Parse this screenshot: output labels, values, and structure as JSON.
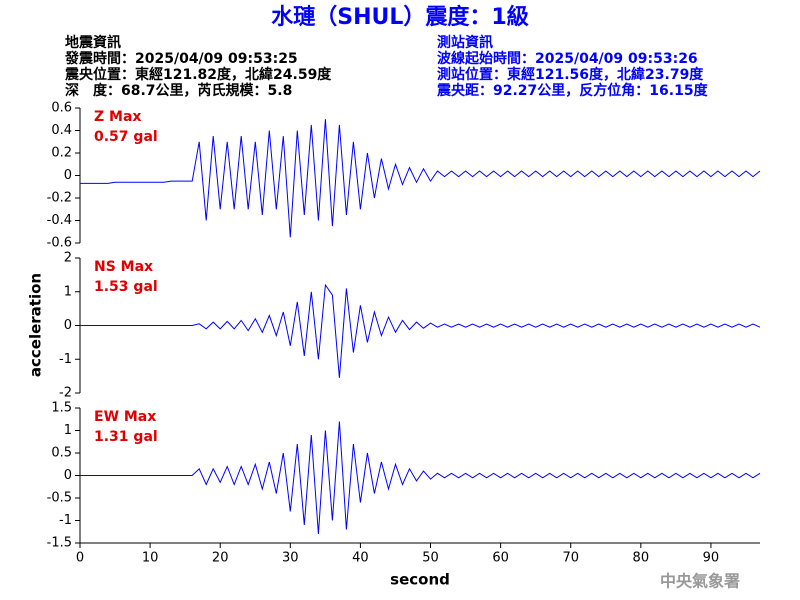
{
  "header": {
    "title": "水璉（SHUL）震度：1級",
    "left": [
      "地震資訊",
      "發震時間：2025/04/09 09:53:25",
      "震央位置：東經121.82度，北緯24.59度",
      "深　度：68.7公里，芮氏規模：5.8"
    ],
    "right": [
      "測站資訊",
      "波線起始時間：2025/04/09 09:53:26",
      "測站位置：東經121.56度，北緯23.79度",
      "震央距：92.27公里，反方位角：16.15度"
    ],
    "ylabel": "acceleration",
    "watermark": "中央氣象署"
  },
  "chart_data": [
    {
      "type": "line",
      "label": "Z Max",
      "max_label": "0.57 gal",
      "color": "#0000ff",
      "label_color": "#e00000",
      "xlim": [
        0,
        97
      ],
      "ylim": [
        -0.6,
        0.6
      ],
      "yticks": [
        0.6,
        0.4,
        0.2,
        0,
        -0.2,
        -0.4,
        -0.6
      ],
      "x": [
        0,
        1,
        2,
        3,
        4,
        5,
        6,
        7,
        8,
        9,
        10,
        11,
        12,
        13,
        14,
        15,
        16,
        17,
        18,
        19,
        20,
        21,
        22,
        23,
        24,
        25,
        26,
        27,
        28,
        29,
        30,
        31,
        32,
        33,
        34,
        35,
        36,
        37,
        38,
        39,
        40,
        41,
        42,
        43,
        44,
        45,
        46,
        47,
        48,
        49,
        50,
        51,
        52,
        53,
        54,
        55,
        56,
        57,
        58,
        59,
        60,
        61,
        62,
        63,
        64,
        65,
        66,
        67,
        68,
        69,
        70,
        71,
        72,
        73,
        74,
        75,
        76,
        77,
        78,
        79,
        80,
        81,
        82,
        83,
        84,
        85,
        86,
        87,
        88,
        89,
        90,
        91,
        92,
        93,
        94,
        95,
        96,
        97
      ],
      "values": [
        -0.07,
        -0.07,
        -0.07,
        -0.07,
        -0.07,
        -0.06,
        -0.06,
        -0.06,
        -0.06,
        -0.06,
        -0.06,
        -0.06,
        -0.06,
        -0.05,
        -0.05,
        -0.05,
        -0.05,
        0.3,
        -0.4,
        0.35,
        -0.3,
        0.3,
        -0.3,
        0.35,
        -0.3,
        0.3,
        -0.35,
        0.4,
        -0.3,
        0.35,
        -0.55,
        0.4,
        -0.35,
        0.45,
        -0.4,
        0.5,
        -0.45,
        0.45,
        -0.35,
        0.3,
        -0.3,
        0.2,
        -0.2,
        0.15,
        -0.12,
        0.1,
        -0.08,
        0.07,
        -0.06,
        0.06,
        -0.05,
        0.04,
        -0.01,
        0.04,
        -0.01,
        0.04,
        -0.01,
        0.04,
        -0.01,
        0.04,
        -0.01,
        0.04,
        -0.01,
        0.04,
        -0.01,
        0.04,
        -0.01,
        0.04,
        -0.01,
        0.04,
        -0.01,
        0.04,
        -0.01,
        0.04,
        -0.01,
        0.04,
        -0.01,
        0.04,
        -0.01,
        0.04,
        -0.01,
        0.04,
        -0.01,
        0.04,
        -0.01,
        0.04,
        -0.01,
        0.04,
        -0.01,
        0.04,
        -0.01,
        0.04,
        -0.01,
        0.04,
        -0.01,
        0.04,
        -0.01,
        0.04
      ]
    },
    {
      "type": "line",
      "label": "NS Max",
      "max_label": "1.53 gal",
      "color": "#0000ff",
      "label_color": "#e00000",
      "xlim": [
        0,
        97
      ],
      "ylim": [
        -2,
        2
      ],
      "yticks": [
        2,
        1,
        0,
        -1,
        -2
      ],
      "x": [
        0,
        1,
        2,
        3,
        4,
        5,
        6,
        7,
        8,
        9,
        10,
        11,
        12,
        13,
        14,
        15,
        16,
        17,
        18,
        19,
        20,
        21,
        22,
        23,
        24,
        25,
        26,
        27,
        28,
        29,
        30,
        31,
        32,
        33,
        34,
        35,
        36,
        37,
        38,
        39,
        40,
        41,
        42,
        43,
        44,
        45,
        46,
        47,
        48,
        49,
        50,
        51,
        52,
        53,
        54,
        55,
        56,
        57,
        58,
        59,
        60,
        61,
        62,
        63,
        64,
        65,
        66,
        67,
        68,
        69,
        70,
        71,
        72,
        73,
        74,
        75,
        76,
        77,
        78,
        79,
        80,
        81,
        82,
        83,
        84,
        85,
        86,
        87,
        88,
        89,
        90,
        91,
        92,
        93,
        94,
        95,
        96,
        97
      ],
      "values": [
        0,
        0,
        0,
        0,
        0,
        0,
        0,
        0,
        0,
        0,
        0,
        0,
        0,
        0,
        0,
        0,
        0,
        0.05,
        -0.1,
        0.1,
        -0.1,
        0.12,
        -0.1,
        0.15,
        -0.15,
        0.2,
        -0.2,
        0.3,
        -0.3,
        0.4,
        -0.6,
        0.7,
        -0.9,
        1.0,
        -1.0,
        1.2,
        0.9,
        -1.55,
        1.1,
        -0.8,
        0.6,
        -0.5,
        0.4,
        -0.3,
        0.25,
        -0.2,
        0.15,
        -0.12,
        0.1,
        -0.08,
        0.07,
        -0.05,
        0.04,
        -0.05,
        0.04,
        -0.05,
        0.04,
        -0.05,
        0.04,
        -0.05,
        0.04,
        -0.05,
        0.04,
        -0.05,
        0.04,
        -0.05,
        0.04,
        -0.05,
        0.04,
        -0.05,
        0.04,
        -0.05,
        0.04,
        -0.05,
        0.04,
        -0.05,
        0.04,
        -0.05,
        0.04,
        -0.05,
        0.04,
        -0.05,
        0.04,
        -0.05,
        0.04,
        -0.05,
        0.04,
        -0.05,
        0.04,
        -0.05,
        0.04,
        -0.05,
        0.04,
        -0.05,
        0.04,
        -0.05,
        0.04,
        -0.05
      ]
    },
    {
      "type": "line",
      "label": "EW Max",
      "max_label": "1.31 gal",
      "color": "#0000ff",
      "label_color": "#e00000",
      "xlim": [
        0,
        97
      ],
      "ylim": [
        -1.5,
        1.5
      ],
      "yticks": [
        1.5,
        1,
        0.5,
        0,
        -0.5,
        -1,
        -1.5
      ],
      "xticks": [
        0,
        10,
        20,
        30,
        40,
        50,
        60,
        70,
        80,
        90
      ],
      "xlabel": "second",
      "x": [
        0,
        1,
        2,
        3,
        4,
        5,
        6,
        7,
        8,
        9,
        10,
        11,
        12,
        13,
        14,
        15,
        16,
        17,
        18,
        19,
        20,
        21,
        22,
        23,
        24,
        25,
        26,
        27,
        28,
        29,
        30,
        31,
        32,
        33,
        34,
        35,
        36,
        37,
        38,
        39,
        40,
        41,
        42,
        43,
        44,
        45,
        46,
        47,
        48,
        49,
        50,
        51,
        52,
        53,
        54,
        55,
        56,
        57,
        58,
        59,
        60,
        61,
        62,
        63,
        64,
        65,
        66,
        67,
        68,
        69,
        70,
        71,
        72,
        73,
        74,
        75,
        76,
        77,
        78,
        79,
        80,
        81,
        82,
        83,
        84,
        85,
        86,
        87,
        88,
        89,
        90,
        91,
        92,
        93,
        94,
        95,
        96,
        97
      ],
      "values": [
        0,
        0,
        0,
        0,
        0,
        0,
        0,
        0,
        0,
        0,
        0,
        0,
        0,
        0,
        0,
        0,
        0,
        0.15,
        -0.2,
        0.15,
        -0.15,
        0.2,
        -0.2,
        0.2,
        -0.2,
        0.25,
        -0.3,
        0.3,
        -0.4,
        0.5,
        -0.8,
        0.7,
        -1.1,
        0.9,
        -1.3,
        1.0,
        -1.0,
        1.2,
        -1.2,
        0.7,
        -0.6,
        0.5,
        -0.4,
        0.3,
        -0.3,
        0.25,
        -0.2,
        0.15,
        -0.12,
        0.1,
        -0.08,
        0.05,
        -0.05,
        0.05,
        -0.05,
        0.05,
        -0.05,
        0.05,
        -0.05,
        0.05,
        -0.05,
        0.05,
        -0.05,
        0.05,
        -0.05,
        0.05,
        -0.05,
        0.05,
        -0.05,
        0.05,
        -0.05,
        0.05,
        -0.05,
        0.05,
        -0.05,
        0.05,
        -0.05,
        0.05,
        -0.05,
        0.05,
        -0.05,
        0.05,
        -0.05,
        0.05,
        -0.05,
        0.05,
        -0.05,
        0.05,
        -0.05,
        0.05,
        -0.05,
        0.05,
        -0.05,
        0.05,
        -0.05,
        0.05,
        -0.05,
        0.05
      ]
    }
  ]
}
